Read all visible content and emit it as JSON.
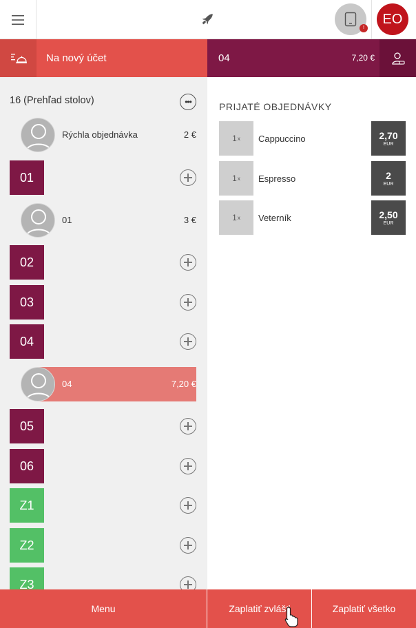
{
  "header": {
    "menu_icon": "hamburger-icon",
    "logo_icon": "rocket-icon",
    "tablet_icon": "tablet-icon",
    "tablet_badge": "!",
    "user_initials": "EO"
  },
  "new_account": {
    "icon": "bell-table-icon",
    "label": "Na nový účet"
  },
  "selected_table": {
    "name": "04",
    "total": "7,20 €",
    "icon": "person-account-icon"
  },
  "tables_panel": {
    "title": "16 (Prehľad stolov)",
    "more_icon": "more-icon",
    "quick_order": {
      "name": "Rýchla objednávka",
      "price": "2 €"
    },
    "tables": [
      {
        "label": "01",
        "color": "#7e1845",
        "guests": [
          {
            "name": "01",
            "price": "3 €"
          }
        ]
      },
      {
        "label": "02",
        "color": "#7e1845",
        "guests": []
      },
      {
        "label": "03",
        "color": "#7e1845",
        "guests": []
      },
      {
        "label": "04",
        "color": "#7e1845",
        "guests": [
          {
            "name": "04",
            "price": "7,20 €",
            "active": true
          }
        ]
      },
      {
        "label": "05",
        "color": "#7e1845",
        "guests": []
      },
      {
        "label": "06",
        "color": "#7e1845",
        "guests": []
      },
      {
        "label": "Z1",
        "color": "#53c066",
        "guests": []
      },
      {
        "label": "Z2",
        "color": "#53c066",
        "guests": []
      },
      {
        "label": "Z3",
        "color": "#53c066",
        "guests": []
      }
    ]
  },
  "orders_panel": {
    "title": "PRIJATÉ OBJEDNÁVKY",
    "currency": "EUR",
    "items": [
      {
        "qty": "1",
        "qty_unit": "x",
        "name": "Cappuccino",
        "price": "2,70"
      },
      {
        "qty": "1",
        "qty_unit": "x",
        "name": "Espresso",
        "price": "2"
      },
      {
        "qty": "1",
        "qty_unit": "x",
        "name": "Veterník",
        "price": "2,50"
      }
    ]
  },
  "footer": {
    "menu_label": "Menu",
    "pay_split_label": "Zaplatiť zvlášť",
    "pay_all_label": "Zaplatiť všetko"
  },
  "colors": {
    "accent_red": "#e3514b",
    "table_wine": "#7e1845",
    "table_green": "#53c066",
    "price_dark": "#4a4a4a",
    "user_red": "#c0141c"
  }
}
